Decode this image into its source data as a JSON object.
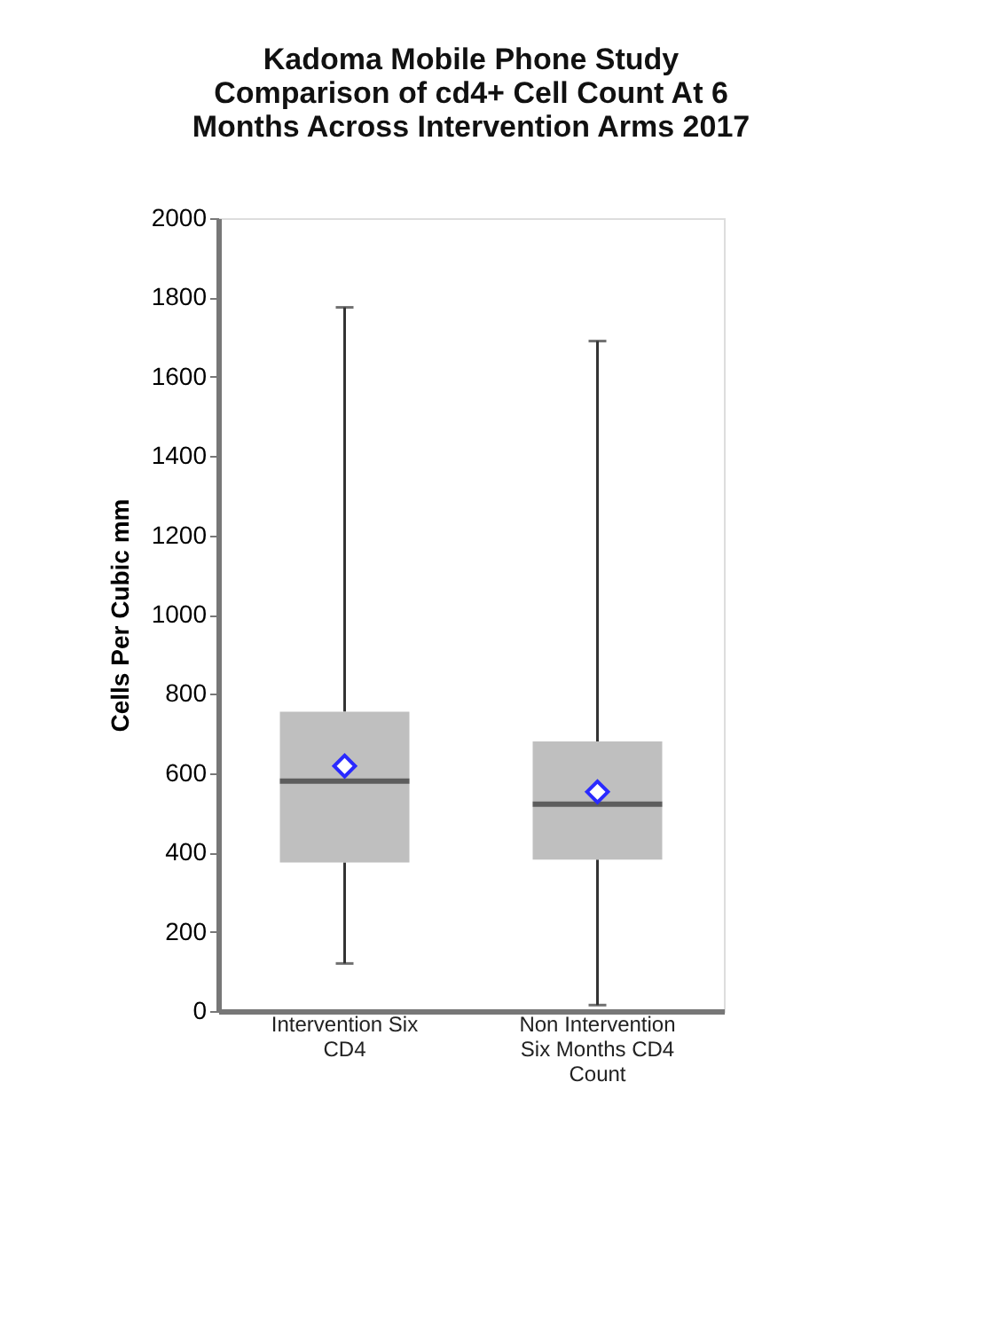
{
  "chart_data": {
    "type": "box",
    "title": "Kadoma Mobile Phone Study\nComparison of cd4+ Cell Count At 6\nMonths Across Intervention Arms 2017",
    "ylabel": "Cells Per Cubic mm",
    "categories": [
      "Intervention Six\nCD4",
      "Non Intervention\nSix Months CD4\nCount"
    ],
    "boxes": [
      {
        "low": 120,
        "q1": 375,
        "median": 580,
        "q3": 755,
        "high": 1775,
        "mean": 618
      },
      {
        "low": 15,
        "q1": 382,
        "median": 522,
        "q3": 680,
        "high": 1690,
        "mean": 553
      }
    ],
    "colors": [
      "#bfbfbf",
      "#bfbfbf"
    ],
    "ylim": [
      0,
      2000
    ],
    "yticks": [
      0,
      200,
      400,
      600,
      800,
      1000,
      1200,
      1400,
      1600,
      1800,
      2000
    ],
    "grid": false
  }
}
